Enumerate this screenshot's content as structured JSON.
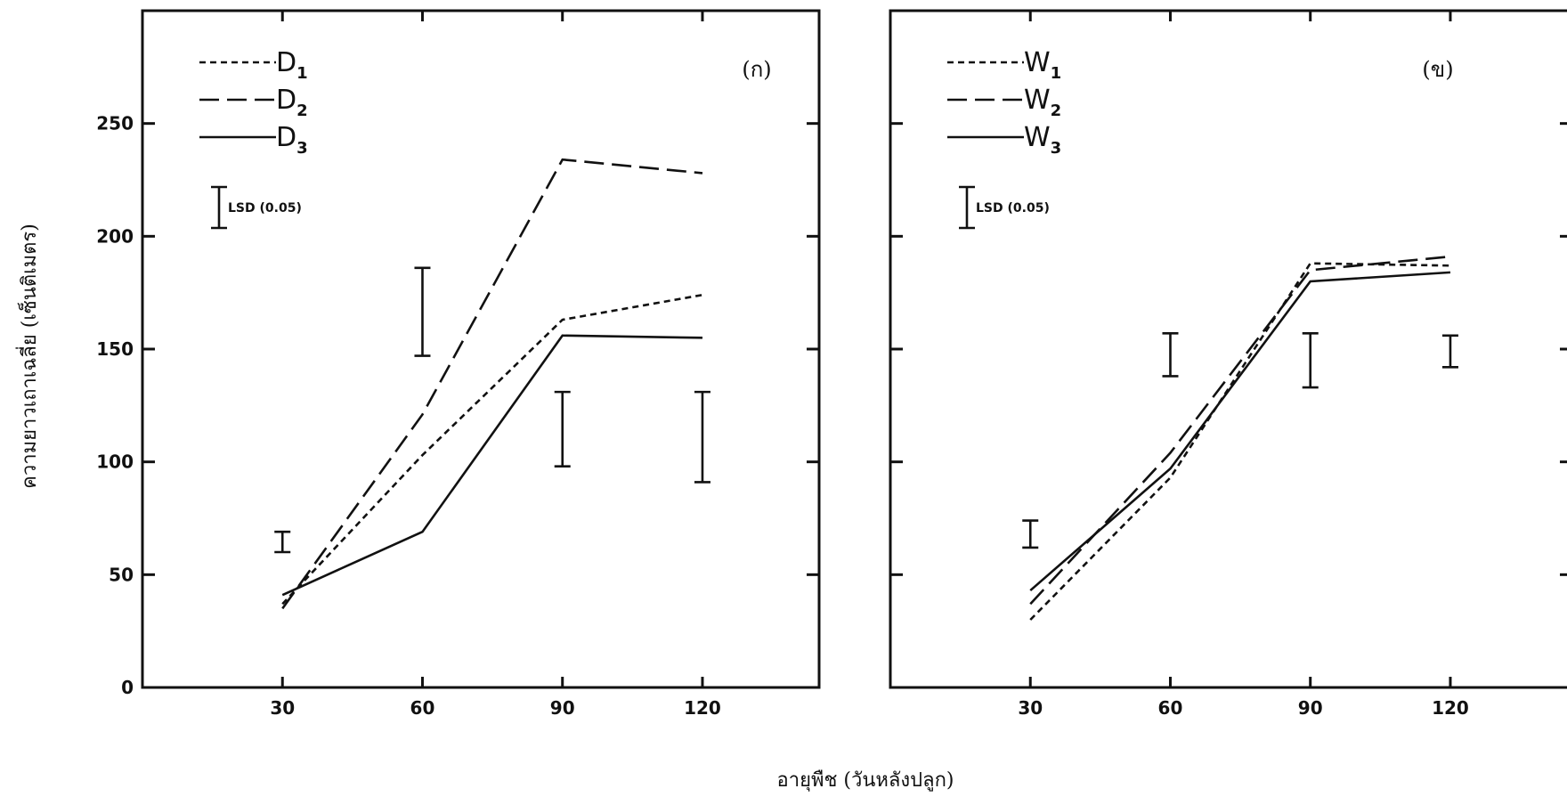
{
  "chart_data": [
    {
      "type": "line",
      "panel_label": "(ก)",
      "x": [
        30,
        60,
        90,
        120
      ],
      "xticks": [
        "30",
        "60",
        "90",
        "120"
      ],
      "xlim": [
        0,
        145
      ],
      "yticks": [
        "0",
        "50",
        "100",
        "150",
        "200",
        "250"
      ],
      "ylim": [
        0,
        300
      ],
      "lsd_key": "LSD (0.05)",
      "series": [
        {
          "name": "D1",
          "label_main": "D",
          "label_sub": "1",
          "dash": "short",
          "values": [
            37,
            103,
            163,
            174
          ]
        },
        {
          "name": "D2",
          "label_main": "D",
          "label_sub": "2",
          "dash": "long",
          "values": [
            35,
            121,
            234,
            228
          ]
        },
        {
          "name": "D3",
          "label_main": "D",
          "label_sub": "3",
          "dash": "solid",
          "values": [
            41,
            69,
            156,
            155
          ]
        }
      ],
      "lsd_bars": [
        {
          "x": 30,
          "low": 60,
          "high": 69
        },
        {
          "x": 60,
          "low": 147,
          "high": 186
        },
        {
          "x": 90,
          "low": 98,
          "high": 131
        },
        {
          "x": 120,
          "low": 91,
          "high": 131
        }
      ]
    },
    {
      "type": "line",
      "panel_label": "(ข)",
      "x": [
        30,
        60,
        90,
        120
      ],
      "xticks": [
        "30",
        "60",
        "90",
        "120"
      ],
      "xlim": [
        0,
        145
      ],
      "yticks": [
        "0",
        "50",
        "100",
        "150",
        "200",
        "250"
      ],
      "ylim": [
        0,
        300
      ],
      "lsd_key": "LSD (0.05)",
      "series": [
        {
          "name": "W1",
          "label_main": "W",
          "label_sub": "1",
          "dash": "short",
          "values": [
            30,
            93,
            188,
            187
          ]
        },
        {
          "name": "W2",
          "label_main": "W",
          "label_sub": "2",
          "dash": "long",
          "values": [
            37,
            104,
            185,
            191
          ]
        },
        {
          "name": "W3",
          "label_main": "W",
          "label_sub": "3",
          "dash": "solid",
          "values": [
            43,
            97,
            180,
            184
          ]
        }
      ],
      "lsd_bars": [
        {
          "x": 30,
          "low": 62,
          "high": 74
        },
        {
          "x": 60,
          "low": 138,
          "high": 157
        },
        {
          "x": 90,
          "low": 133,
          "high": 157
        },
        {
          "x": 120,
          "low": 142,
          "high": 156
        }
      ]
    }
  ],
  "ylabel": "ความยาวเถาเฉลี่ย (เซ็นติเมตร)",
  "xlabel": "อายุพืช (วันหลังปลูก)"
}
